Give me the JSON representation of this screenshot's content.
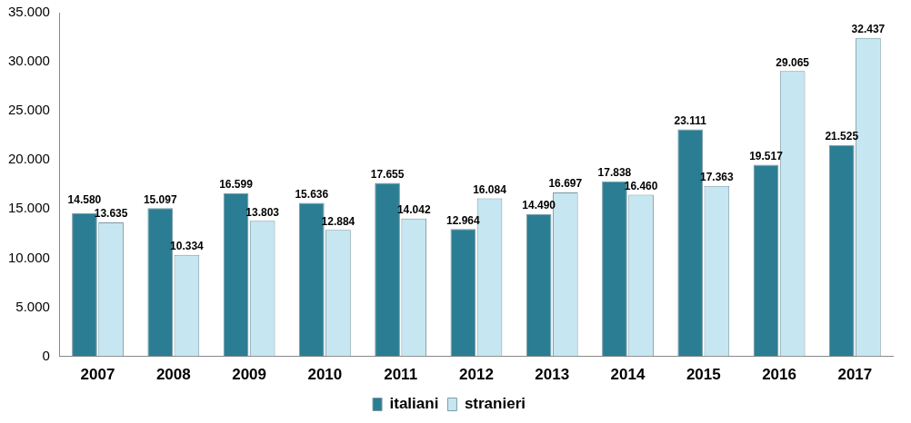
{
  "chart_data": {
    "type": "bar",
    "categories": [
      "2007",
      "2008",
      "2009",
      "2010",
      "2011",
      "2012",
      "2013",
      "2014",
      "2015",
      "2016",
      "2017"
    ],
    "series": [
      {
        "name": "italiani",
        "color": "#2b7d93",
        "values": [
          14580,
          15097,
          16599,
          15636,
          17655,
          12964,
          14490,
          17838,
          23111,
          19517,
          21525
        ],
        "value_labels": [
          "14.580",
          "15.097",
          "16.599",
          "15.636",
          "17.655",
          "12.964",
          "14.490",
          "17.838",
          "23.111",
          "19.517",
          "21.525"
        ]
      },
      {
        "name": "stranieri",
        "color": "#c6e6f1",
        "values": [
          13635,
          10334,
          13803,
          12884,
          14042,
          16084,
          16697,
          16460,
          17363,
          29065,
          32437
        ],
        "value_labels": [
          "13.635",
          "10.334",
          "13.803",
          "12.884",
          "14.042",
          "16.084",
          "16.697",
          "16.460",
          "17.363",
          "29.065",
          "32.437"
        ]
      }
    ],
    "ylim": [
      0,
      35000
    ],
    "yticks": [
      {
        "value": 0,
        "label": "0"
      },
      {
        "value": 5000,
        "label": "5.000"
      },
      {
        "value": 10000,
        "label": "10.000"
      },
      {
        "value": 15000,
        "label": "15.000"
      },
      {
        "value": 20000,
        "label": "20.000"
      },
      {
        "value": 25000,
        "label": "25.000"
      },
      {
        "value": 30000,
        "label": "30.000"
      },
      {
        "value": 35000,
        "label": "35.000"
      }
    ],
    "grid": false,
    "legend": "bottom",
    "data_labels": true
  }
}
